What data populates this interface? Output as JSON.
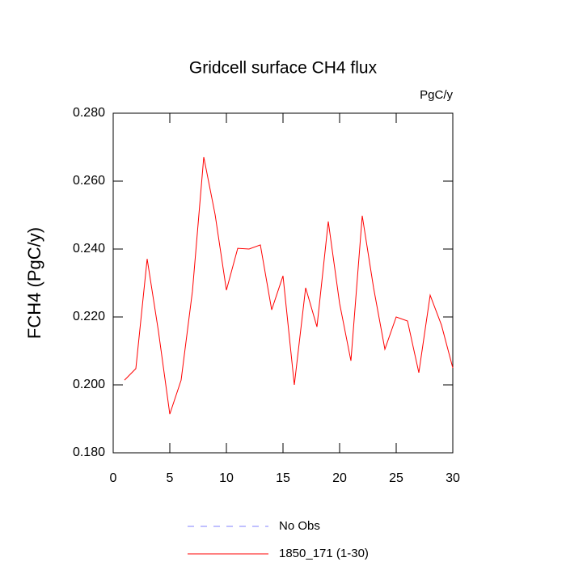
{
  "chart_data": {
    "type": "line",
    "title": "Gridcell surface CH4 flux",
    "units": "PgC/y",
    "y_label": "FCH4  (PgC/y)",
    "x": [
      1,
      2,
      3,
      4,
      5,
      6,
      7,
      8,
      9,
      10,
      11,
      12,
      13,
      14,
      15,
      16,
      17,
      18,
      19,
      20,
      21,
      22,
      23,
      24,
      25,
      26,
      27,
      28,
      29,
      30
    ],
    "series": [
      {
        "name": "No Obs",
        "color": "#8080ff",
        "dashed": true,
        "values": [
          null,
          null,
          null,
          null,
          null,
          null,
          null,
          null,
          null,
          null,
          null,
          null,
          null,
          null,
          null,
          null,
          null,
          null,
          null,
          null,
          null,
          null,
          null,
          null,
          null,
          null,
          null,
          null,
          null,
          null
        ]
      },
      {
        "name": "1850_171 (1-30)",
        "color": "#ff0000",
        "dashed": false,
        "values": [
          0.2014,
          0.2048,
          0.2371,
          0.2157,
          0.1914,
          0.2014,
          0.2276,
          0.2671,
          0.2502,
          0.2279,
          0.2402,
          0.24,
          0.2412,
          0.2221,
          0.2321,
          0.2,
          0.2286,
          0.2171,
          0.2481,
          0.224,
          0.2071,
          0.2498,
          0.2286,
          0.2105,
          0.22,
          0.2188,
          0.2036,
          0.2264,
          0.2176,
          0.205
        ]
      }
    ],
    "xlim": [
      0,
      30
    ],
    "ylim": [
      0.18,
      0.28
    ],
    "xticks": [
      0,
      5,
      10,
      15,
      20,
      25,
      30
    ],
    "yticks": [
      {
        "value": 0.18,
        "label": "0.180"
      },
      {
        "value": 0.2,
        "label": "0.200"
      },
      {
        "value": 0.22,
        "label": "0.220"
      },
      {
        "value": 0.24,
        "label": "0.240"
      },
      {
        "value": 0.26,
        "label": "0.260"
      },
      {
        "value": 0.28,
        "label": "0.280"
      }
    ]
  }
}
